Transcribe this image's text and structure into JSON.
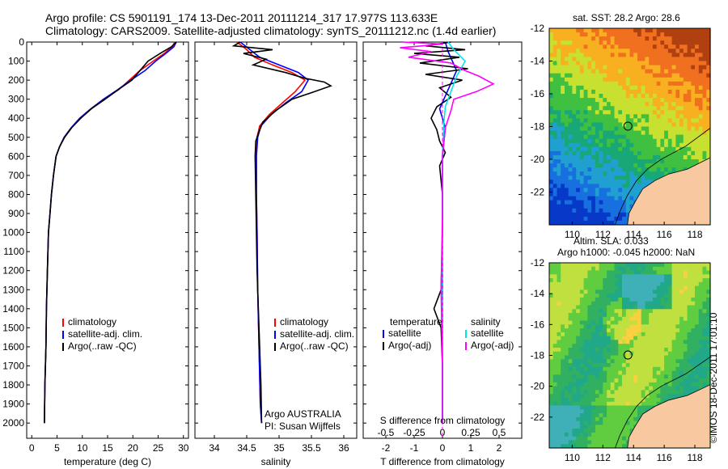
{
  "header": {
    "line1": "Argo profile: CS 5901191_174 13-Dec-2011 20111214_317 17.977S 113.633E",
    "line2": "Climatology: CARS2009. Satellite-adjusted climatology: synTS_20111212.nc (1.4d earlier)"
  },
  "sidebar_stamp": "©IMOS 18-Dec-2011 17:01:10",
  "colors": {
    "climatology": "#ff0000",
    "satellite": "#0000ff",
    "argo": "#000000",
    "satellite_s": "#00e5ee",
    "argo_s_adj": "#ff00ff",
    "land": "#f8c9a0"
  },
  "chart_data": [
    {
      "type": "line",
      "name": "temperature-profile",
      "xlabel": "temperature (deg C)",
      "ylabel": "",
      "xlim": [
        -1,
        31
      ],
      "ylim": [
        2080,
        0
      ],
      "xticks": [
        0,
        5,
        10,
        15,
        20,
        25,
        30
      ],
      "yticks": [
        0,
        100,
        200,
        300,
        400,
        500,
        600,
        700,
        800,
        900,
        1000,
        1100,
        1200,
        1300,
        1400,
        1500,
        1600,
        1700,
        1800,
        1900,
        2000
      ],
      "legend_position": "lower-right",
      "series": [
        {
          "name": "climatology",
          "color": "#ff0000",
          "x": [
            28.3,
            27.8,
            26.2,
            24,
            21.4,
            19.3,
            17.2,
            14.2,
            11.7,
            9.5,
            7.8,
            6.4,
            5.5,
            4.8,
            4.3,
            3.9,
            3.6,
            3.3,
            3.1,
            2.9,
            2.8,
            2.6,
            2.5
          ],
          "y": [
            0,
            25,
            60,
            100,
            150,
            200,
            250,
            300,
            350,
            400,
            450,
            500,
            550,
            600,
            700,
            800,
            900,
            1000,
            1200,
            1400,
            1600,
            1800,
            2000
          ]
        },
        {
          "name": "satellite-adj. clim.",
          "color": "#0000ff",
          "x": [
            28.6,
            28.1,
            26.5,
            24.5,
            22.4,
            19.6,
            17,
            14.2,
            11.7,
            9.5,
            7.8,
            6.4,
            5.5,
            4.8,
            4.3,
            3.9,
            3.6,
            3.3,
            3.1,
            2.9,
            2.8,
            2.6,
            2.5
          ],
          "y": [
            0,
            25,
            60,
            100,
            150,
            200,
            250,
            300,
            350,
            400,
            450,
            500,
            550,
            600,
            700,
            800,
            900,
            1000,
            1200,
            1400,
            1600,
            1800,
            2000
          ]
        },
        {
          "name": "Argo(..raw -QC)",
          "color": "#000000",
          "x": [
            28.6,
            27.6,
            25.4,
            23,
            21.4,
            19.8,
            17.1,
            14.5,
            11.8,
            9.7,
            7.9,
            6.5,
            5.5,
            4.8,
            4.3,
            3.9,
            3.6,
            3.3,
            3.1,
            2.9,
            2.8,
            2.6,
            2.5
          ],
          "y": [
            0,
            25,
            60,
            100,
            150,
            200,
            250,
            300,
            350,
            400,
            450,
            500,
            550,
            600,
            700,
            800,
            900,
            1000,
            1200,
            1400,
            1600,
            1800,
            2000
          ]
        }
      ]
    },
    {
      "type": "line",
      "name": "salinity-profile",
      "xlabel": "salinity",
      "xlim": [
        33.7,
        36.2
      ],
      "ylim": [
        2080,
        0
      ],
      "xticks": [
        34,
        34.5,
        35,
        35.5,
        36
      ],
      "legend_position": "lower-right",
      "annotation_line1": "Argo AUSTRALIA",
      "annotation_line2": "PI: Susan Wijffels",
      "series": [
        {
          "name": "climatology",
          "color": "#ff0000",
          "x": [
            34.35,
            34.5,
            34.62,
            34.9,
            35.2,
            35.4,
            35.25,
            35.05,
            34.85,
            34.7,
            34.66,
            34.65,
            34.65,
            34.66,
            34.67,
            34.69,
            34.71,
            34.73
          ],
          "y": [
            0,
            40,
            80,
            120,
            160,
            200,
            260,
            320,
            380,
            440,
            500,
            600,
            800,
            1000,
            1300,
            1600,
            1900,
            2000
          ]
        },
        {
          "name": "satellite-adj. clim.",
          "color": "#0000ff",
          "x": [
            34.4,
            34.55,
            34.7,
            35.0,
            35.3,
            35.45,
            35.35,
            35.1,
            34.88,
            34.72,
            34.67,
            34.65,
            34.65,
            34.66,
            34.67,
            34.69,
            34.71,
            34.73
          ],
          "y": [
            0,
            40,
            80,
            120,
            160,
            200,
            260,
            320,
            380,
            440,
            500,
            600,
            800,
            1000,
            1300,
            1600,
            1900,
            2000
          ]
        },
        {
          "name": "Argo(..raw -QC)",
          "color": "#000000",
          "x": [
            34.4,
            34.3,
            34.9,
            34.45,
            34.8,
            34.6,
            35.1,
            35.4,
            35.7,
            35.8,
            35.55,
            35.2,
            34.95,
            34.75,
            34.68,
            34.64,
            34.63,
            34.64,
            34.65,
            34.66,
            34.68,
            34.7,
            34.72,
            34.73
          ],
          "y": [
            0,
            20,
            40,
            60,
            90,
            120,
            160,
            190,
            210,
            230,
            260,
            300,
            360,
            420,
            480,
            520,
            600,
            800,
            1000,
            1200,
            1400,
            1600,
            1800,
            2000
          ]
        }
      ]
    },
    {
      "type": "line",
      "name": "difference-profile",
      "xlabel": "T difference from climatology",
      "top_label": "S difference from climatology",
      "xlim": [
        -2.8,
        2.8
      ],
      "ylim": [
        2080,
        0
      ],
      "xticks": [
        -2,
        -1,
        0,
        1,
        2
      ],
      "top_ticks": [
        "-0.5",
        "-0.25",
        "0",
        "0.25",
        "0.5"
      ],
      "top_tick_values": [
        -2,
        -1,
        0,
        1,
        2
      ],
      "legend_position": "lower-center",
      "legend_temperature": "temperature",
      "legend_salinity": "salinity",
      "series": [
        {
          "name": "satellite",
          "group": "temperature",
          "color": "#0000ff",
          "x": [
            0.1,
            0.2,
            0.5,
            0.2,
            -0.1,
            0.1,
            0,
            0,
            0,
            0,
            0
          ],
          "y": [
            0,
            50,
            150,
            250,
            350,
            450,
            600,
            900,
            1200,
            1600,
            2000
          ]
        },
        {
          "name": "Argo(-adj)",
          "group": "temperature",
          "color": "#000000",
          "x": [
            0.3,
            -0.6,
            0.8,
            -1.0,
            0.6,
            -0.8,
            0.9,
            -0.6,
            0.7,
            -0.1,
            0.3,
            -0.2,
            -0.4,
            -0.2,
            -0.1,
            0.1,
            -0.1,
            0,
            0,
            -0.05,
            -0.3,
            -0.05,
            0,
            0,
            0
          ],
          "y": [
            0,
            20,
            40,
            60,
            80,
            110,
            140,
            170,
            200,
            240,
            290,
            340,
            400,
            460,
            520,
            580,
            650,
            800,
            1000,
            1300,
            1400,
            1500,
            1700,
            1900,
            2000
          ]
        },
        {
          "name": "satellite",
          "group": "salinity",
          "color": "#00e5ee",
          "x": [
            0.2,
            0.4,
            0.8,
            0.5,
            0.3,
            0.1,
            0.05,
            0,
            0,
            0,
            0
          ],
          "y": [
            0,
            40,
            100,
            180,
            260,
            340,
            420,
            600,
            1000,
            1500,
            2000
          ]
        },
        {
          "name": "Argo(-adj)",
          "group": "salinity",
          "color": "#ff00ff",
          "x": [
            -1.4,
            0,
            -1.5,
            -0.4,
            -1.2,
            0.3,
            0.8,
            1.3,
            1.8,
            1.2,
            0.4,
            0.3,
            0.1,
            0,
            0,
            -0.05,
            0,
            0
          ],
          "y": [
            0,
            10,
            30,
            50,
            80,
            110,
            150,
            180,
            220,
            260,
            300,
            360,
            450,
            600,
            900,
            1300,
            1700,
            2000
          ]
        }
      ]
    },
    {
      "type": "heatmap",
      "name": "sst-map",
      "title": "sat. SST: 28.2  Argo: 28.6",
      "xlim": [
        108.5,
        119
      ],
      "ylim": [
        -24,
        -12
      ],
      "xticks": [
        110,
        112,
        114,
        116,
        118
      ],
      "yticks": [
        -12,
        -14,
        -16,
        -18,
        -20,
        -22
      ],
      "argo_position": [
        113.633,
        -17.977
      ]
    },
    {
      "type": "heatmap",
      "name": "sla-map",
      "title_line1": "Altim. SLA: 0.033",
      "title_line2": "Argo h1000: -0.045 h2000: NaN",
      "xlim": [
        108.5,
        119
      ],
      "ylim": [
        -24,
        -12
      ],
      "xticks": [
        110,
        112,
        114,
        116,
        118
      ],
      "yticks": [
        -12,
        -14,
        -16,
        -18,
        -20,
        -22
      ],
      "argo_position": [
        113.633,
        -17.977
      ]
    }
  ]
}
